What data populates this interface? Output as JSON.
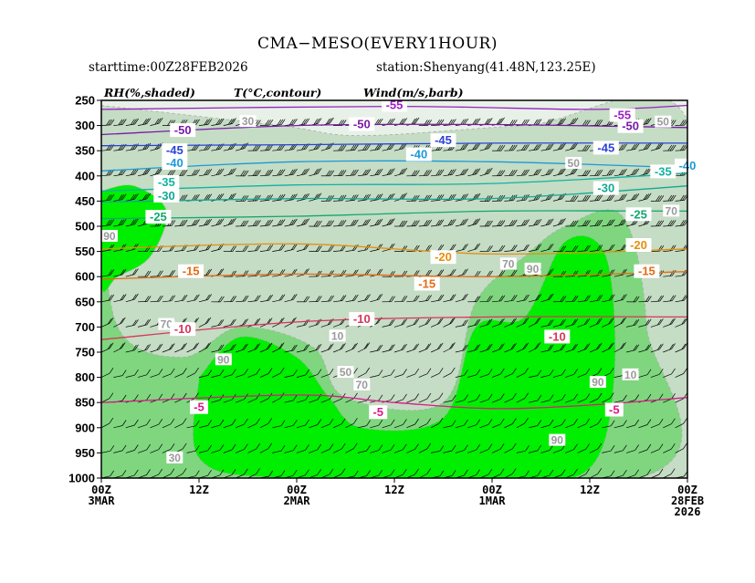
{
  "chart_data": {
    "type": "time-height cross-section",
    "title": "CMA−MESO(EVERY1HOUR)",
    "starttime": "starttime:00Z28FEB2026",
    "station": "station:Shenyang(41.48N,123.25E)",
    "legend": {
      "rh": "RH(%,shaded)",
      "temp": "T(°C,contour)",
      "wind": "Wind(m/s,barb)"
    },
    "y_axis": {
      "levels": [
        250,
        300,
        350,
        400,
        450,
        500,
        550,
        600,
        650,
        700,
        750,
        800,
        850,
        900,
        950,
        1000
      ],
      "range": [
        250,
        1000
      ],
      "unit": "hPa"
    },
    "x_axis": {
      "range_hours": [
        0,
        72
      ],
      "direction": "time decreases to the right",
      "ticks": [
        {
          "hour": 72,
          "lines": [
            "00Z",
            "3MAR"
          ]
        },
        {
          "hour": 60,
          "lines": [
            "12Z"
          ]
        },
        {
          "hour": 48,
          "lines": [
            "00Z",
            "2MAR"
          ]
        },
        {
          "hour": 36,
          "lines": [
            "12Z"
          ]
        },
        {
          "hour": 24,
          "lines": [
            "00Z",
            "1MAR"
          ]
        },
        {
          "hour": 12,
          "lines": [
            "12Z"
          ]
        },
        {
          "hour": 0,
          "lines": [
            "00Z",
            "28FEB",
            "2026"
          ]
        }
      ]
    },
    "temperature_contours": [
      {
        "value": -55,
        "label": "-55",
        "color": "#9b1fc4",
        "p": [
          [
            72,
            268
          ],
          [
            36,
            262
          ],
          [
            12,
            268
          ],
          [
            0,
            260
          ]
        ],
        "labels": [
          {
            "h": 36,
            "p": 260
          },
          {
            "h": 8,
            "p": 280
          }
        ]
      },
      {
        "value": -50,
        "label": "-50",
        "color": "#7a1aa8",
        "p": [
          [
            72,
            318
          ],
          [
            48,
            300
          ],
          [
            24,
            298
          ],
          [
            0,
            304
          ]
        ],
        "labels": [
          {
            "h": 62,
            "p": 310
          },
          {
            "h": 40,
            "p": 298
          },
          {
            "h": 7,
            "p": 302
          }
        ]
      },
      {
        "value": -45,
        "label": "-45",
        "color": "#2b43d8",
        "p": [
          [
            72,
            340
          ],
          [
            48,
            338
          ],
          [
            24,
            335
          ],
          [
            0,
            335
          ]
        ],
        "labels": [
          {
            "h": 63,
            "p": 350
          },
          {
            "h": 30,
            "p": 330
          },
          {
            "h": 10,
            "p": 345
          }
        ]
      },
      {
        "value": -40,
        "label": "-40",
        "color": "#1a9ad8",
        "p": [
          [
            72,
            390
          ],
          [
            48,
            372
          ],
          [
            24,
            372
          ],
          [
            0,
            384
          ]
        ],
        "labels": [
          {
            "h": 63,
            "p": 375
          },
          {
            "h": 33,
            "p": 358
          },
          {
            "h": 0,
            "p": 380
          }
        ]
      },
      {
        "value": -35,
        "label": "-35",
        "color": "#11b3a0",
        "p": [
          [
            72,
            430
          ],
          [
            48,
            418
          ],
          [
            24,
            415
          ],
          [
            0,
            395
          ]
        ],
        "labels": [
          {
            "h": 64,
            "p": 413
          },
          {
            "h": 3,
            "p": 392
          }
        ]
      },
      {
        "value": -30,
        "label": "-30",
        "color": "#12a893",
        "p": [
          [
            72,
            452
          ],
          [
            48,
            445
          ],
          [
            24,
            445
          ],
          [
            0,
            420
          ]
        ],
        "labels": [
          {
            "h": 64,
            "p": 440
          },
          {
            "h": 10,
            "p": 425
          }
        ]
      },
      {
        "value": -25,
        "label": "-25",
        "color": "#12a86e",
        "p": [
          [
            72,
            485
          ],
          [
            48,
            480
          ],
          [
            24,
            470
          ],
          [
            0,
            470
          ]
        ],
        "labels": [
          {
            "h": 65,
            "p": 482
          },
          {
            "h": 6,
            "p": 477
          }
        ]
      },
      {
        "value": -20,
        "label": "-20",
        "color": "#e4900e",
        "p": [
          [
            72,
            545
          ],
          [
            48,
            535
          ],
          [
            24,
            555
          ],
          [
            0,
            545
          ]
        ],
        "labels": [
          {
            "h": 30,
            "p": 562
          },
          {
            "h": 6,
            "p": 538
          }
        ]
      },
      {
        "value": -15,
        "label": "-15",
        "color": "#e66b12",
        "p": [
          [
            72,
            605
          ],
          [
            48,
            595
          ],
          [
            24,
            600
          ],
          [
            0,
            590
          ]
        ],
        "labels": [
          {
            "h": 61,
            "p": 590
          },
          {
            "h": 32,
            "p": 615
          },
          {
            "h": 5,
            "p": 590
          }
        ]
      },
      {
        "value": -10,
        "label": "-10",
        "color": "#d8355a",
        "p": [
          [
            72,
            725
          ],
          [
            48,
            690
          ],
          [
            24,
            680
          ],
          [
            0,
            680
          ]
        ],
        "labels": [
          {
            "h": 62,
            "p": 705
          },
          {
            "h": 40,
            "p": 685
          },
          {
            "h": 16,
            "p": 720
          }
        ]
      },
      {
        "value": -5,
        "label": "-5",
        "color": "#d81a86",
        "p": [
          [
            72,
            850
          ],
          [
            48,
            835
          ],
          [
            36,
            850
          ],
          [
            24,
            862
          ],
          [
            12,
            855
          ],
          [
            0,
            840
          ]
        ],
        "labels": [
          {
            "h": 60,
            "p": 860
          },
          {
            "h": 38,
            "p": 870
          },
          {
            "h": 9,
            "p": 865
          }
        ]
      }
    ],
    "rh_labels": [
      {
        "value": "30",
        "h": 54,
        "p": 292
      },
      {
        "value": "90",
        "h": 71,
        "p": 520
      },
      {
        "value": "70",
        "h": 64,
        "p": 695
      },
      {
        "value": "90",
        "h": 57,
        "p": 765
      },
      {
        "value": "50",
        "h": 42,
        "p": 790
      },
      {
        "value": "70",
        "h": 40,
        "p": 815
      },
      {
        "value": "10",
        "h": 43,
        "p": 718
      },
      {
        "value": "70",
        "h": 22,
        "p": 575
      },
      {
        "value": "90",
        "h": 19,
        "p": 585
      },
      {
        "value": "90",
        "h": 11,
        "p": 810
      },
      {
        "value": "10",
        "h": 7,
        "p": 795
      },
      {
        "value": "70",
        "h": 2,
        "p": 470
      },
      {
        "value": "50",
        "h": 3,
        "p": 293
      },
      {
        "value": "50",
        "h": 14,
        "p": 375
      },
      {
        "value": "30",
        "h": 63,
        "p": 960
      },
      {
        "value": "90",
        "h": 16,
        "p": 925
      }
    ],
    "rh_regions": [
      {
        "category": "rh>=90",
        "color": "#00ee00",
        "p": [
          [
            72,
            430
          ],
          [
            68,
            420
          ],
          [
            64,
            470
          ],
          [
            66,
            560
          ],
          [
            70,
            600
          ],
          [
            72,
            620
          ]
        ]
      },
      {
        "category": "rh>=90",
        "color": "#00ee00",
        "p": [
          [
            60,
            800
          ],
          [
            55,
            720
          ],
          [
            48,
            760
          ],
          [
            44,
            840
          ],
          [
            40,
            900
          ],
          [
            30,
            880
          ],
          [
            26,
            700
          ],
          [
            20,
            680
          ],
          [
            15,
            530
          ],
          [
            10,
            560
          ],
          [
            9,
            800
          ],
          [
            12,
            980
          ],
          [
            22,
            1000
          ],
          [
            50,
            1000
          ],
          [
            60,
            960
          ]
        ]
      },
      {
        "category": "rh 70-90",
        "color": "#7fd67f",
        "p": [
          [
            72,
            430
          ],
          [
            70,
            700
          ],
          [
            62,
            760
          ],
          [
            55,
            700
          ],
          [
            46,
            740
          ],
          [
            42,
            840
          ],
          [
            30,
            850
          ],
          [
            26,
            650
          ],
          [
            20,
            560
          ],
          [
            15,
            500
          ],
          [
            8,
            480
          ],
          [
            5,
            700
          ],
          [
            6,
            1000
          ],
          [
            72,
            1000
          ]
        ]
      },
      {
        "category": "rh 50-70",
        "color": "#c5dcc5",
        "p": [
          [
            72,
            260
          ],
          [
            50,
            300
          ],
          [
            40,
            320
          ],
          [
            20,
            300
          ],
          [
            0,
            290
          ],
          [
            0,
            1000
          ],
          [
            72,
            1000
          ]
        ]
      }
    ],
    "wind_field": {
      "description": "Wind barbs at each hour and vertical level; strong westerlies aloft, weaker winds near surface",
      "color": "#000000"
    }
  },
  "colors": {
    "rh_90": "#00ee00",
    "rh_70": "#7fd67f",
    "rh_50": "#c5dcc5",
    "rh_30": "#e8f1e8",
    "background": "#ffffff"
  }
}
